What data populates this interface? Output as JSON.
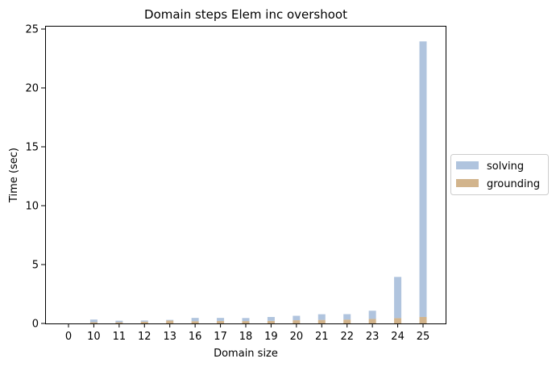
{
  "chart_data": {
    "type": "bar",
    "title": "Domain steps Elem inc overshoot",
    "xlabel": "Domain size",
    "ylabel": "Time (sec)",
    "categories": [
      "0",
      "10",
      "11",
      "12",
      "13",
      "16",
      "17",
      "18",
      "19",
      "20",
      "21",
      "22",
      "23",
      "24",
      "25"
    ],
    "stacked": true,
    "series": [
      {
        "name": "solving",
        "color": "#b0c4de",
        "values": [
          0.0,
          0.23,
          0.13,
          0.1,
          0.06,
          0.28,
          0.26,
          0.26,
          0.33,
          0.38,
          0.48,
          0.46,
          0.7,
          3.5,
          23.4
        ]
      },
      {
        "name": "grounding",
        "color": "#d2b48c",
        "values": [
          0.0,
          0.1,
          0.1,
          0.15,
          0.24,
          0.19,
          0.21,
          0.2,
          0.22,
          0.27,
          0.3,
          0.33,
          0.38,
          0.45,
          0.55
        ]
      }
    ],
    "yticks": [
      0,
      5,
      10,
      15,
      20,
      25
    ],
    "ylim": [
      0,
      25.2
    ],
    "grid": false,
    "legend_position": "center-right, outside"
  }
}
